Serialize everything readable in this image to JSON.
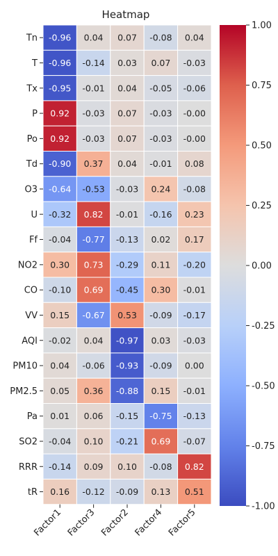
{
  "chart_data": {
    "type": "heatmap",
    "title": "Heatmap",
    "xlabel": "",
    "ylabel": "",
    "columns": [
      "Factor1",
      "Factor3",
      "Factor2",
      "Factor4",
      "Factor5"
    ],
    "rows": [
      "Tn",
      "T",
      "Tx",
      "P",
      "Po",
      "Td",
      "O3",
      "U",
      "Ff",
      "NO2",
      "CO",
      "VV",
      "AQI",
      "PM10",
      "PM2.5",
      "Pa",
      "SO2",
      "RRR",
      "tR"
    ],
    "values": [
      [
        -0.96,
        0.04,
        0.07,
        -0.08,
        0.04
      ],
      [
        -0.96,
        -0.14,
        0.03,
        0.07,
        -0.03
      ],
      [
        -0.95,
        -0.01,
        0.04,
        -0.05,
        -0.06
      ],
      [
        0.92,
        -0.03,
        0.07,
        -0.03,
        -0.0
      ],
      [
        0.92,
        -0.03,
        0.07,
        -0.03,
        -0.0
      ],
      [
        -0.9,
        0.37,
        0.04,
        -0.01,
        0.08
      ],
      [
        -0.64,
        -0.53,
        -0.03,
        0.24,
        -0.08
      ],
      [
        -0.32,
        0.82,
        -0.01,
        -0.16,
        0.23
      ],
      [
        -0.04,
        -0.77,
        -0.13,
        0.02,
        0.17
      ],
      [
        0.3,
        0.73,
        -0.29,
        0.11,
        -0.2
      ],
      [
        -0.1,
        0.69,
        -0.45,
        0.3,
        -0.01
      ],
      [
        0.15,
        -0.67,
        0.53,
        -0.09,
        -0.17
      ],
      [
        -0.02,
        0.04,
        -0.97,
        0.03,
        -0.03
      ],
      [
        0.04,
        -0.06,
        -0.93,
        -0.09,
        0.0
      ],
      [
        0.05,
        0.36,
        -0.88,
        0.15,
        -0.01
      ],
      [
        0.01,
        0.06,
        -0.15,
        -0.75,
        -0.13
      ],
      [
        -0.04,
        0.1,
        -0.21,
        0.69,
        -0.07
      ],
      [
        -0.14,
        0.09,
        0.1,
        -0.08,
        0.82
      ],
      [
        0.16,
        -0.12,
        -0.09,
        0.13,
        0.51
      ]
    ],
    "value_labels": [
      [
        "-0.96",
        "0.04",
        "0.07",
        "-0.08",
        "0.04"
      ],
      [
        "-0.96",
        "-0.14",
        "0.03",
        "0.07",
        "-0.03"
      ],
      [
        "-0.95",
        "-0.01",
        "0.04",
        "-0.05",
        "-0.06"
      ],
      [
        "0.92",
        "-0.03",
        "0.07",
        "-0.03",
        "-0.00"
      ],
      [
        "0.92",
        "-0.03",
        "0.07",
        "-0.03",
        "-0.00"
      ],
      [
        "-0.90",
        "0.37",
        "0.04",
        "-0.01",
        "0.08"
      ],
      [
        "-0.64",
        "-0.53",
        "-0.03",
        "0.24",
        "-0.08"
      ],
      [
        "-0.32",
        "0.82",
        "-0.01",
        "-0.16",
        "0.23"
      ],
      [
        "-0.04",
        "-0.77",
        "-0.13",
        "0.02",
        "0.17"
      ],
      [
        "0.30",
        "0.73",
        "-0.29",
        "0.11",
        "-0.20"
      ],
      [
        "-0.10",
        "0.69",
        "-0.45",
        "0.30",
        "-0.01"
      ],
      [
        "0.15",
        "-0.67",
        "0.53",
        "-0.09",
        "-0.17"
      ],
      [
        "-0.02",
        "0.04",
        "-0.97",
        "0.03",
        "-0.03"
      ],
      [
        "0.04",
        "-0.06",
        "-0.93",
        "-0.09",
        "0.00"
      ],
      [
        "0.05",
        "0.36",
        "-0.88",
        "0.15",
        "-0.01"
      ],
      [
        "0.01",
        "0.06",
        "-0.15",
        "-0.75",
        "-0.13"
      ],
      [
        "-0.04",
        "0.10",
        "-0.21",
        "0.69",
        "-0.07"
      ],
      [
        "-0.14",
        "0.09",
        "0.10",
        "-0.08",
        "0.82"
      ],
      [
        "0.16",
        "-0.12",
        "-0.09",
        "0.13",
        "0.51"
      ]
    ],
    "colorbar": {
      "vmin": -1.0,
      "vmax": 1.0,
      "ticks": [
        1.0,
        0.75,
        0.5,
        0.25,
        0.0,
        -0.25,
        -0.5,
        -0.75,
        -1.0
      ],
      "tick_labels": [
        "1.00",
        "0.75",
        "0.50",
        "0.25",
        "0.00",
        "-0.25",
        "-0.50",
        "-0.75",
        "-1.00"
      ],
      "colormap": "coolwarm",
      "color_low": "#3b4cc0",
      "color_mid": "#dddddd",
      "color_high": "#b40426"
    },
    "grid": false,
    "legend": "colorbar-right"
  }
}
